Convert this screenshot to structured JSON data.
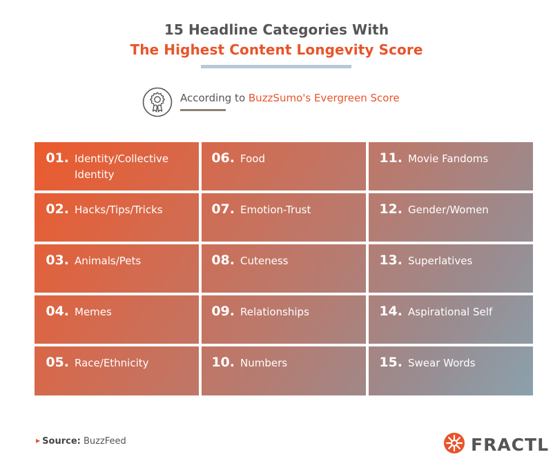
{
  "header": {
    "title_line1": "15 Headline Categories With",
    "title_line2": "The Highest Content Longevity Score",
    "subtitle_prefix": "According to ",
    "subtitle_accent": "BuzzSumo's Evergreen Score"
  },
  "colors": {
    "accent": "#e8542a",
    "text_dark": "#555555",
    "grid_start": "#ec5a2c",
    "grid_end": "#8aa1ad"
  },
  "categories": [
    {
      "num": "01.",
      "label": "Identity/Collective Identity"
    },
    {
      "num": "02.",
      "label": "Hacks/Tips/Tricks"
    },
    {
      "num": "03.",
      "label": "Animals/Pets"
    },
    {
      "num": "04.",
      "label": "Memes"
    },
    {
      "num": "05.",
      "label": "Race/Ethnicity"
    },
    {
      "num": "06.",
      "label": "Food"
    },
    {
      "num": "07.",
      "label": "Emotion-Trust"
    },
    {
      "num": "08.",
      "label": "Cuteness"
    },
    {
      "num": "09.",
      "label": "Relationships"
    },
    {
      "num": "10.",
      "label": "Numbers"
    },
    {
      "num": "11.",
      "label": "Movie Fandoms"
    },
    {
      "num": "12.",
      "label": "Gender/Women"
    },
    {
      "num": "13.",
      "label": "Superlatives"
    },
    {
      "num": "14.",
      "label": "Aspirational Self"
    },
    {
      "num": "15.",
      "label": "Swear Words"
    }
  ],
  "footer": {
    "source_label": "Source:",
    "source_value": "BuzzFeed",
    "brand": "FRACTL"
  },
  "icons": {
    "badge": "award-ribbon-icon",
    "logo": "fractl-flower-icon"
  }
}
